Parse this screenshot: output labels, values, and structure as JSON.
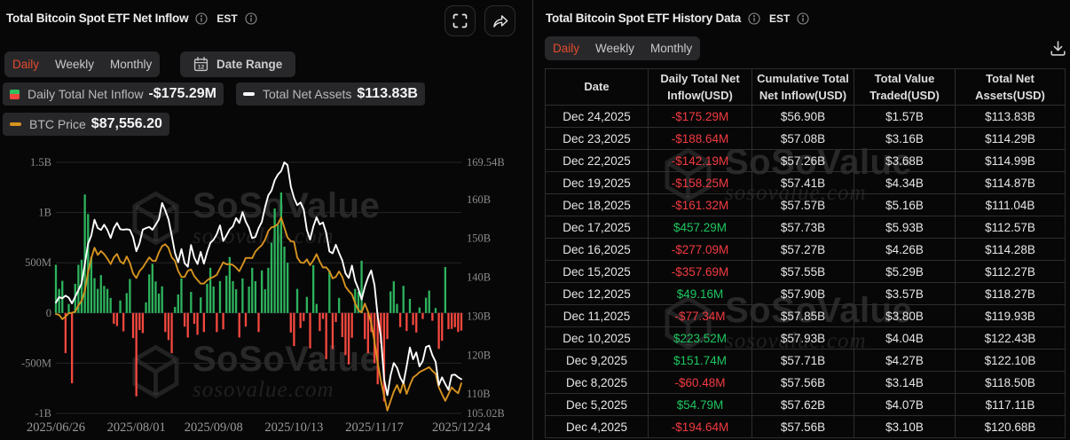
{
  "colors": {
    "accent": "#e4492f",
    "bar_positive": "#2eb35d",
    "bar_negative": "#f5483e",
    "assets_line": "#ffffff",
    "btc_line": "#d6931f",
    "table_positive": "#1ec65e",
    "table_negative": "#f33b40"
  },
  "watermark": {
    "brand": "SoSoValue",
    "domain": "sosovalue.com"
  },
  "chart_panel": {
    "title": "Total Bitcoin Spot ETF Net Inflow",
    "timezone": "EST",
    "tabs": [
      "Daily",
      "Weekly",
      "Monthly"
    ],
    "active_tab": "Daily",
    "date_range_label": "Date Range",
    "legend": [
      {
        "label": "Daily Total Net Inflow",
        "value": "-$175.29M",
        "icon": "green-red-square"
      },
      {
        "label": "Total Net Assets",
        "value": "$113.83B",
        "icon": "white-dash"
      },
      {
        "label": "BTC Price",
        "value": "$87,556.20",
        "icon": "orange-dash"
      }
    ]
  },
  "history_panel": {
    "title": "Total Bitcoin Spot ETF History Data",
    "timezone": "EST",
    "tabs": [
      "Daily",
      "Weekly",
      "Monthly"
    ],
    "active_tab": "Daily",
    "table": {
      "columns": [
        "Date",
        "Daily Total Net\nInflow(USD)",
        "Cumulative Total\nNet Inflow(USD)",
        "Total Value\nTraded(USD)",
        "Total Net\nAssets(USD)"
      ],
      "rows": [
        {
          "date": "Dec 24,2025",
          "inflow": "-$175.29M",
          "cumulative": "$56.90B",
          "traded": "$1.57B",
          "assets": "$113.83B"
        },
        {
          "date": "Dec 23,2025",
          "inflow": "-$188.64M",
          "cumulative": "$57.08B",
          "traded": "$3.16B",
          "assets": "$114.29B"
        },
        {
          "date": "Dec 22,2025",
          "inflow": "-$142.19M",
          "cumulative": "$57.26B",
          "traded": "$3.68B",
          "assets": "$114.99B"
        },
        {
          "date": "Dec 19,2025",
          "inflow": "-$158.25M",
          "cumulative": "$57.41B",
          "traded": "$4.34B",
          "assets": "$114.87B"
        },
        {
          "date": "Dec 18,2025",
          "inflow": "-$161.32M",
          "cumulative": "$57.57B",
          "traded": "$5.16B",
          "assets": "$111.04B"
        },
        {
          "date": "Dec 17,2025",
          "inflow": "$457.29M",
          "cumulative": "$57.73B",
          "traded": "$5.93B",
          "assets": "$112.57B"
        },
        {
          "date": "Dec 16,2025",
          "inflow": "-$277.09M",
          "cumulative": "$57.27B",
          "traded": "$4.26B",
          "assets": "$114.28B"
        },
        {
          "date": "Dec 15,2025",
          "inflow": "-$357.69M",
          "cumulative": "$57.55B",
          "traded": "$5.29B",
          "assets": "$112.27B"
        },
        {
          "date": "Dec 12,2025",
          "inflow": "$49.16M",
          "cumulative": "$57.90B",
          "traded": "$3.57B",
          "assets": "$118.27B"
        },
        {
          "date": "Dec 11,2025",
          "inflow": "-$77.34M",
          "cumulative": "$57.85B",
          "traded": "$3.80B",
          "assets": "$119.93B"
        },
        {
          "date": "Dec 10,2025",
          "inflow": "$223.52M",
          "cumulative": "$57.93B",
          "traded": "$4.04B",
          "assets": "$122.43B"
        },
        {
          "date": "Dec 9,2025",
          "inflow": "$151.74M",
          "cumulative": "$57.71B",
          "traded": "$4.27B",
          "assets": "$122.10B"
        },
        {
          "date": "Dec 8,2025",
          "inflow": "-$60.48M",
          "cumulative": "$57.56B",
          "traded": "$3.14B",
          "assets": "$118.50B"
        },
        {
          "date": "Dec 5,2025",
          "inflow": "$54.79M",
          "cumulative": "$57.62B",
          "traded": "$4.07B",
          "assets": "$117.11B"
        },
        {
          "date": "Dec 4,2025",
          "inflow": "-$194.64M",
          "cumulative": "$57.56B",
          "traded": "$3.10B",
          "assets": "$120.68B"
        }
      ]
    }
  },
  "chart_data": {
    "type": "combo",
    "title": "Total Bitcoin Spot ETF Net Inflow",
    "x_tick_labels": [
      "2025/06/26",
      "2025/08/01",
      "2025/09/08",
      "2025/10/13",
      "2025/11/17",
      "2025/12/24"
    ],
    "x_tick_index": [
      0,
      25,
      49,
      74,
      99,
      126
    ],
    "num_days": 127,
    "left_axis": {
      "unit": "USD",
      "min": -1000,
      "max": 1500,
      "tick_labels": [
        "1.5B",
        "1B",
        "500M",
        "0",
        "-500M",
        "-1B"
      ],
      "tick_values": [
        1500,
        1000,
        500,
        0,
        -500,
        -1000
      ]
    },
    "right_axis": {
      "unit": "USD",
      "min": 105.02,
      "max": 169.54,
      "tick_labels": [
        "169.54B",
        "160B",
        "150B",
        "140B",
        "130B",
        "120B",
        "110B",
        "105.02B"
      ],
      "tick_values": [
        169.54,
        160,
        150,
        140,
        130,
        120,
        110,
        105.02
      ]
    },
    "btc_axis": {
      "min": 80000,
      "max": 128000
    },
    "grid": true,
    "series": [
      {
        "name": "Daily Total Net Inflow",
        "type": "bar",
        "unit": "USD million",
        "values": [
          480,
          240,
          320,
          -400,
          90,
          -700,
          290,
          480,
          530,
          1180,
          985,
          560,
          347,
          240,
          377,
          270,
          240,
          150,
          -108,
          -130,
          124,
          -183,
          198,
          338,
          -250,
          -830,
          -170,
          -200,
          106,
          384,
          488,
          314,
          193,
          265,
          -190,
          -270,
          -400,
          60,
          184,
          344,
          -136,
          -244,
          210,
          -108,
          -217,
          156,
          -190,
          290,
          450,
          263,
          -190,
          317,
          -163,
          371,
          557,
          317,
          236,
          -244,
          344,
          -136,
          263,
          450,
          317,
          -190,
          424,
          236,
          450,
          700,
          1040,
          880,
          1200,
          660,
          500,
          -195,
          -330,
          240,
          -150,
          -80,
          160,
          -353,
          477,
          90,
          -180,
          -60,
          -460,
          424,
          -360,
          -90,
          150,
          -240,
          -420,
          -512,
          -247,
          240,
          210,
          520,
          -260,
          -400,
          -190,
          -500,
          -710,
          -300,
          -880,
          -260,
          215,
          315,
          90,
          -140,
          270,
          -180,
          140,
          -120,
          -194.64,
          54.79,
          -60.48,
          151.74,
          223.52,
          -77.34,
          49.16,
          -357.69,
          -277.09,
          457.29,
          -161.32,
          -158.25,
          -142.19,
          -188.64,
          -175.29
        ]
      },
      {
        "name": "Total Net Assets",
        "type": "line",
        "axis": "right",
        "unit": "USD billion",
        "values": [
          133.5,
          134.88,
          134.61,
          135.28,
          134.75,
          133.29,
          135.02,
          136.66,
          138.43,
          143.35,
          148.65,
          150.7,
          154.78,
          152.64,
          152.16,
          153.52,
          152.18,
          150.1,
          152.62,
          153.96,
          152.35,
          152.24,
          152.36,
          152.2,
          150.31,
          146.7,
          148.77,
          152.23,
          152.65,
          152.92,
          152.21,
          153.48,
          154.91,
          159.09,
          157.17,
          154.88,
          150.69,
          146.29,
          143.88,
          147.25,
          143.62,
          142.72,
          148.29,
          145.04,
          143.41,
          146.52,
          143.47,
          146.48,
          148.84,
          149.66,
          151.05,
          153.33,
          149.32,
          150.7,
          152.31,
          153.07,
          155.22,
          153.97,
          156.72,
          154.3,
          152.7,
          150.05,
          150.39,
          152.64,
          154.23,
          158.06,
          161.05,
          162.26,
          164.94,
          166.43,
          167.31,
          169.54,
          168.83,
          163.35,
          160.41,
          158.53,
          159.23,
          157.45,
          152.09,
          149.69,
          153.09,
          155.41,
          153.57,
          154.08,
          151.37,
          146.65,
          146.18,
          148.37,
          146.23,
          144.32,
          141.02,
          139.8,
          143.01,
          139.09,
          137.05,
          134.29,
          137.55,
          139.94,
          141.76,
          138.02,
          129.98,
          124.76,
          113.74,
          109.72,
          114.75,
          117.97,
          116.76,
          114.24,
          112.74,
          117.07,
          121.97,
          118.92,
          120.68,
          117.11,
          118.5,
          122.1,
          122.43,
          119.93,
          118.27,
          112.27,
          114.28,
          112.57,
          111.04,
          114.87,
          114.99,
          114.29,
          113.83
        ]
      },
      {
        "name": "BTC Price",
        "type": "line",
        "axis": "btc",
        "unit": "USD",
        "values": [
          104000,
          103815,
          102787,
          103431,
          104163,
          104312,
          104556,
          106042,
          107163,
          109467,
          113985,
          117259,
          119723,
          118017,
          118941,
          118198,
          117164,
          115862,
          117431,
          118244,
          116500,
          115933,
          117661,
          116128,
          113619,
          112554,
          114182,
          115026,
          116248,
          117426,
          116655,
          116580,
          118631,
          120103,
          120551,
          119714,
          117436,
          116618,
          114237,
          112797,
          112804,
          114275,
          114593,
          112977,
          112093,
          111211,
          111224,
          112007,
          112519,
          112801,
          113297,
          114846,
          116281,
          115821,
          115861,
          115632,
          115018,
          114169,
          115689,
          117304,
          117326,
          117249,
          118840,
          119653,
          120339,
          121661,
          123708,
          124575,
          124763,
          125403,
          126895,
          124500,
          122161,
          121284,
          121179,
          117428,
          116258,
          116105,
          116973,
          115607,
          116762,
          118214,
          116443,
          115052,
          115085,
          114153,
          112473,
          112827,
          114101,
          112795,
          110495,
          109473,
          108676,
          106579,
          104943,
          104360,
          106483,
          104567,
          101855,
          97472,
          92418,
          88211,
          84529,
          81088,
          83355,
          85556,
          87131,
          85282,
          87815,
          85033,
          87102,
          88921,
          89500,
          90200,
          90600,
          91000,
          91400,
          90500,
          89800,
          86600,
          85000,
          83400,
          85000,
          86600,
          85800,
          85200,
          87556
        ]
      }
    ]
  }
}
